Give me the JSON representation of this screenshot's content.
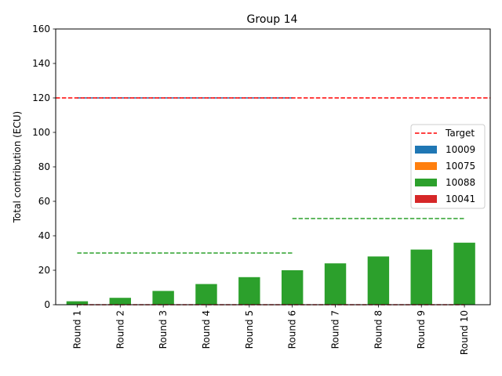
{
  "chart_data": {
    "type": "bar",
    "title": "Group 14",
    "xlabel": "",
    "ylabel": "Total contribution (ECU)",
    "ylim": [
      0,
      160
    ],
    "yticks": [
      0,
      20,
      40,
      60,
      80,
      100,
      120,
      140,
      160
    ],
    "categories": [
      "Round 1",
      "Round 2",
      "Round 3",
      "Round 4",
      "Round 5",
      "Round 6",
      "Round 7",
      "Round 8",
      "Round 9",
      "Round 10"
    ],
    "series": [
      {
        "name": "10009",
        "color": "#1f77b4",
        "values": [
          0,
          0,
          0,
          0,
          0,
          0,
          0,
          0,
          0,
          0
        ]
      },
      {
        "name": "10075",
        "color": "#ff7f0e",
        "values": [
          0,
          0,
          0,
          0,
          0,
          0,
          0,
          0,
          0,
          0
        ]
      },
      {
        "name": "10088",
        "color": "#2ca02c",
        "values": [
          2,
          4,
          8,
          12,
          16,
          20,
          24,
          28,
          32,
          36
        ]
      },
      {
        "name": "10041",
        "color": "#d62728",
        "values": [
          0,
          0,
          0,
          0,
          0,
          0,
          0,
          0,
          0,
          0
        ]
      }
    ],
    "target": {
      "name": "Target",
      "value": 120,
      "color": "#ff0000"
    },
    "reference_lines": [
      {
        "color": "#1f77b4",
        "value": 120,
        "from_category": 0,
        "to_category": 5
      },
      {
        "color": "#2ca02c",
        "value": 30,
        "from_category": 0,
        "to_category": 5
      },
      {
        "color": "#2ca02c",
        "value": 50,
        "from_category": 5,
        "to_category": 9
      },
      {
        "color": "#d62728",
        "value": 0,
        "from_category": 0,
        "to_category": 9
      }
    ],
    "legend_position": "center-right",
    "grid": false
  }
}
